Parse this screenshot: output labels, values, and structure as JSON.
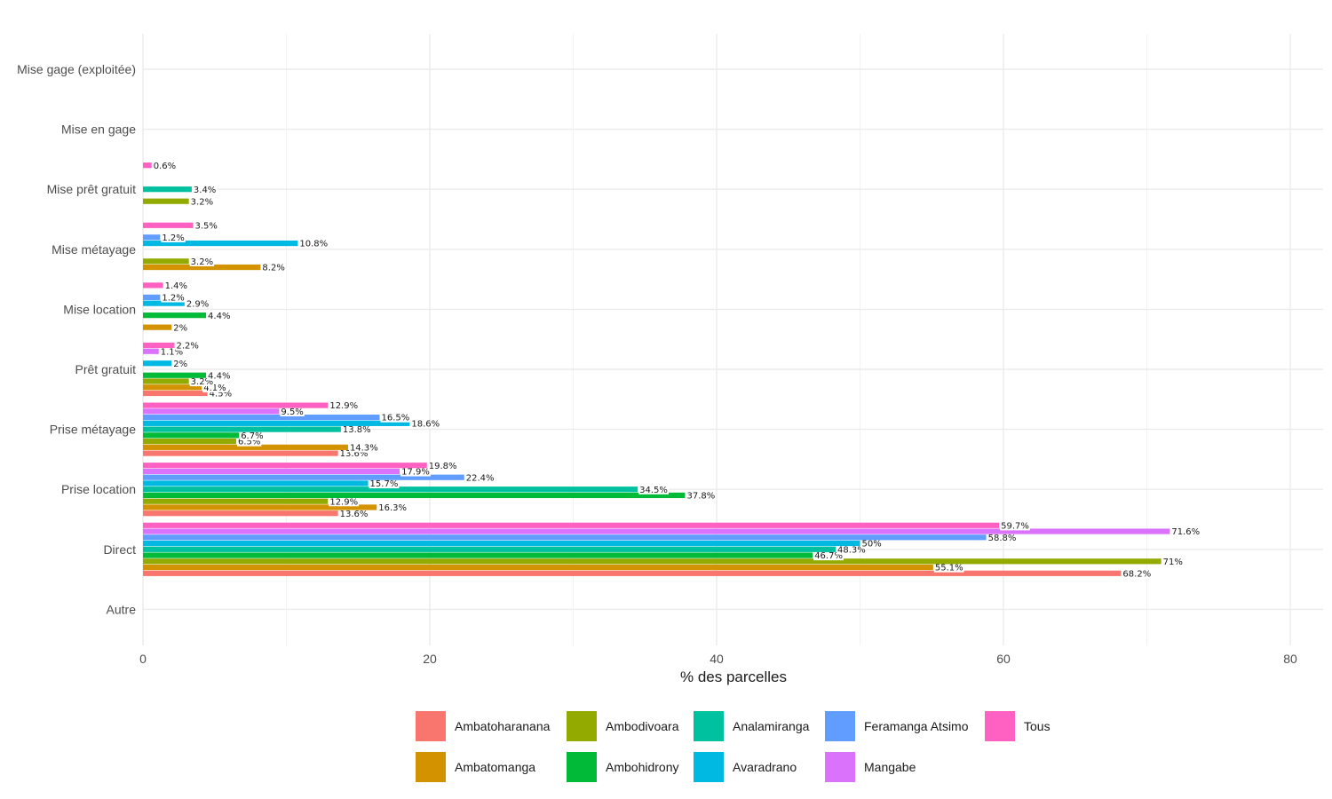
{
  "chart_data": {
    "type": "bar",
    "orientation": "horizontal",
    "title": "",
    "xlabel": "% des parcelles",
    "ylabel": "",
    "xlim": [
      0,
      82
    ],
    "xticks": [
      0,
      20,
      40,
      60,
      80
    ],
    "grid": true,
    "legend_position": "bottom",
    "categories": [
      "Autre",
      "Direct",
      "Prise location",
      "Prise métayage",
      "Prêt gratuit",
      "Mise location",
      "Mise métayage",
      "Mise prêt gratuit",
      "Mise en gage",
      "Mise gage (exploitée)"
    ],
    "series": [
      {
        "name": "Ambatoharanana",
        "color": "#F8766D",
        "values": [
          null,
          68.2,
          13.6,
          13.6,
          4.5,
          null,
          null,
          null,
          null,
          null
        ],
        "labels": [
          null,
          "68.2%",
          "13.6%",
          "13.6%",
          "4.5%",
          null,
          null,
          null,
          null,
          null
        ]
      },
      {
        "name": "Ambatomanga",
        "color": "#D39200",
        "values": [
          null,
          55.1,
          16.3,
          14.3,
          4.1,
          2,
          8.2,
          null,
          null,
          null
        ],
        "labels": [
          null,
          "55.1%",
          "16.3%",
          "14.3%",
          "4.1%",
          "2%",
          "8.2%",
          null,
          null,
          null
        ]
      },
      {
        "name": "Ambodivoara",
        "color": "#93AA00",
        "values": [
          null,
          71,
          12.9,
          6.5,
          3.2,
          null,
          3.2,
          3.2,
          null,
          null
        ],
        "labels": [
          null,
          "71%",
          "12.9%",
          "6.5%",
          "3.2%",
          null,
          "3.2%",
          "3.2%",
          null,
          null
        ]
      },
      {
        "name": "Ambohidrony",
        "color": "#00BA38",
        "values": [
          null,
          46.7,
          37.8,
          6.7,
          4.4,
          4.4,
          null,
          null,
          null,
          null
        ],
        "labels": [
          null,
          "46.7%",
          "37.8%",
          "6.7%",
          "4.4%",
          "4.4%",
          null,
          null,
          null,
          null
        ]
      },
      {
        "name": "Analamiranga",
        "color": "#00C19F",
        "values": [
          null,
          48.3,
          34.5,
          13.8,
          null,
          null,
          null,
          3.4,
          null,
          null
        ],
        "labels": [
          null,
          "48.3%",
          "34.5%",
          "13.8%",
          null,
          null,
          null,
          "3.4%",
          null,
          null
        ]
      },
      {
        "name": "Avaradrano",
        "color": "#00B9E3",
        "values": [
          null,
          50,
          15.7,
          18.6,
          2,
          2.9,
          10.8,
          null,
          null,
          null
        ],
        "labels": [
          null,
          "50%",
          "15.7%",
          "18.6%",
          "2%",
          "2.9%",
          "10.8%",
          null,
          null,
          null
        ]
      },
      {
        "name": "Feramanga Atsimo",
        "color": "#619CFF",
        "values": [
          null,
          58.8,
          22.4,
          16.5,
          null,
          1.2,
          1.2,
          null,
          null,
          null
        ],
        "labels": [
          null,
          "58.8%",
          "22.4%",
          "16.5%",
          null,
          "1.2%",
          "1.2%",
          null,
          null,
          null
        ]
      },
      {
        "name": "Mangabe",
        "color": "#DB72FB",
        "values": [
          null,
          71.6,
          17.9,
          9.5,
          1.1,
          null,
          null,
          null,
          null,
          null
        ],
        "labels": [
          null,
          "71.6%",
          "17.9%",
          "9.5%",
          "1.1%",
          null,
          null,
          null,
          null,
          null
        ]
      },
      {
        "name": "Tous",
        "color": "#FF61C3",
        "values": [
          null,
          59.7,
          19.8,
          12.9,
          2.2,
          1.4,
          3.5,
          0.6,
          null,
          null
        ],
        "labels": [
          null,
          "59.7%",
          "19.8%",
          "12.9%",
          "2.2%",
          "1.4%",
          "3.5%",
          "0.6%",
          null,
          null
        ]
      }
    ]
  }
}
